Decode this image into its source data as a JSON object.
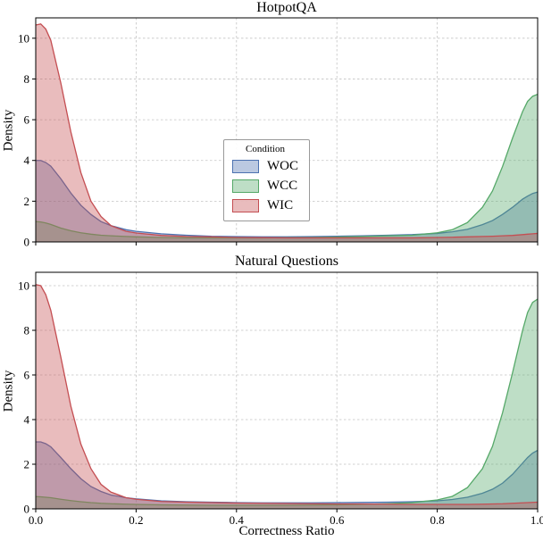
{
  "figure": {
    "background": "#ffffff"
  },
  "chart_data": [
    {
      "type": "area",
      "kind": "kde-density",
      "title": "HotpotQA",
      "xlabel": "",
      "ylabel": "Density",
      "xlim": [
        0,
        1
      ],
      "ylim": [
        0,
        11
      ],
      "grid": "dashed",
      "xticks": [
        0,
        0.2,
        0.4,
        0.6,
        0.8,
        1.0
      ],
      "xtick_labels": [
        "0.0",
        "0.2",
        "0.4",
        "0.6",
        "0.8",
        "1.0"
      ],
      "show_xtick_labels": false,
      "yticks": [
        0,
        2,
        4,
        6,
        8,
        10
      ],
      "ytick_labels": [
        "0",
        "2",
        "4",
        "6",
        "8",
        "10"
      ],
      "x": [
        0,
        0.01,
        0.02,
        0.03,
        0.05,
        0.07,
        0.09,
        0.11,
        0.13,
        0.15,
        0.18,
        0.2,
        0.25,
        0.3,
        0.35,
        0.4,
        0.45,
        0.5,
        0.55,
        0.6,
        0.65,
        0.7,
        0.75,
        0.8,
        0.83,
        0.86,
        0.89,
        0.91,
        0.93,
        0.95,
        0.97,
        0.98,
        0.99,
        1.0
      ],
      "series": [
        {
          "name": "WOC",
          "color": "#4c72b0",
          "values": [
            4.0,
            4.0,
            3.9,
            3.72,
            3.1,
            2.4,
            1.8,
            1.35,
            1.0,
            0.8,
            0.6,
            0.52,
            0.4,
            0.33,
            0.28,
            0.26,
            0.25,
            0.25,
            0.26,
            0.28,
            0.3,
            0.33,
            0.36,
            0.42,
            0.5,
            0.62,
            0.85,
            1.05,
            1.35,
            1.7,
            2.1,
            2.25,
            2.38,
            2.45
          ]
        },
        {
          "name": "WCC",
          "color": "#55a868",
          "values": [
            1.0,
            0.98,
            0.93,
            0.86,
            0.68,
            0.55,
            0.45,
            0.38,
            0.33,
            0.3,
            0.27,
            0.25,
            0.22,
            0.2,
            0.2,
            0.2,
            0.2,
            0.21,
            0.22,
            0.24,
            0.27,
            0.3,
            0.33,
            0.45,
            0.6,
            0.95,
            1.7,
            2.5,
            3.7,
            5.1,
            6.4,
            6.9,
            7.15,
            7.25
          ]
        },
        {
          "name": "WIC",
          "color": "#c44e52",
          "values": [
            10.65,
            10.7,
            10.45,
            9.9,
            7.8,
            5.4,
            3.4,
            2.0,
            1.25,
            0.8,
            0.52,
            0.44,
            0.32,
            0.27,
            0.25,
            0.22,
            0.21,
            0.2,
            0.2,
            0.2,
            0.2,
            0.2,
            0.2,
            0.22,
            0.23,
            0.25,
            0.27,
            0.28,
            0.3,
            0.32,
            0.36,
            0.38,
            0.4,
            0.42
          ]
        }
      ],
      "legend": {
        "title": "Condition",
        "position": "center",
        "entries": [
          {
            "label": "WOC",
            "color": "#4c72b0"
          },
          {
            "label": "WCC",
            "color": "#55a868"
          },
          {
            "label": "WIC",
            "color": "#c44e52"
          }
        ]
      }
    },
    {
      "type": "area",
      "kind": "kde-density",
      "title": "Natural Questions",
      "xlabel": "Correctness Ratio",
      "ylabel": "Density",
      "xlim": [
        0,
        1
      ],
      "ylim": [
        0,
        10.6
      ],
      "grid": "dashed",
      "xticks": [
        0,
        0.2,
        0.4,
        0.6,
        0.8,
        1.0
      ],
      "xtick_labels": [
        "0.0",
        "0.2",
        "0.4",
        "0.6",
        "0.8",
        "1.0"
      ],
      "show_xtick_labels": true,
      "yticks": [
        0,
        2,
        4,
        6,
        8,
        10
      ],
      "ytick_labels": [
        "0",
        "2",
        "4",
        "6",
        "8",
        "10"
      ],
      "x": [
        0,
        0.01,
        0.02,
        0.03,
        0.05,
        0.07,
        0.09,
        0.11,
        0.13,
        0.15,
        0.18,
        0.2,
        0.25,
        0.3,
        0.35,
        0.4,
        0.45,
        0.5,
        0.55,
        0.6,
        0.65,
        0.7,
        0.75,
        0.8,
        0.83,
        0.86,
        0.89,
        0.91,
        0.93,
        0.95,
        0.97,
        0.98,
        0.99,
        1.0
      ],
      "series": [
        {
          "name": "WOC",
          "color": "#4c72b0",
          "values": [
            3.0,
            3.0,
            2.92,
            2.78,
            2.3,
            1.8,
            1.35,
            1.0,
            0.78,
            0.62,
            0.5,
            0.45,
            0.36,
            0.32,
            0.3,
            0.28,
            0.27,
            0.27,
            0.27,
            0.28,
            0.29,
            0.3,
            0.32,
            0.36,
            0.42,
            0.52,
            0.7,
            0.88,
            1.15,
            1.55,
            2.05,
            2.3,
            2.5,
            2.62
          ]
        },
        {
          "name": "WCC",
          "color": "#55a868",
          "values": [
            0.55,
            0.54,
            0.52,
            0.5,
            0.43,
            0.37,
            0.32,
            0.28,
            0.25,
            0.23,
            0.21,
            0.2,
            0.18,
            0.17,
            0.16,
            0.16,
            0.16,
            0.16,
            0.17,
            0.18,
            0.2,
            0.23,
            0.28,
            0.4,
            0.56,
            0.95,
            1.8,
            2.8,
            4.3,
            6.1,
            8.0,
            8.8,
            9.25,
            9.4
          ]
        },
        {
          "name": "WIC",
          "color": "#c44e52",
          "values": [
            10.05,
            10.0,
            9.6,
            8.9,
            6.8,
            4.6,
            2.9,
            1.8,
            1.1,
            0.75,
            0.5,
            0.43,
            0.33,
            0.3,
            0.28,
            0.26,
            0.25,
            0.24,
            0.23,
            0.22,
            0.22,
            0.21,
            0.2,
            0.2,
            0.2,
            0.2,
            0.21,
            0.22,
            0.23,
            0.25,
            0.27,
            0.28,
            0.29,
            0.3
          ]
        }
      ],
      "legend": null
    }
  ],
  "style": {
    "fill_opacity": 0.38,
    "grid_color": "#c3c3c3",
    "spine_color": "#000000"
  }
}
